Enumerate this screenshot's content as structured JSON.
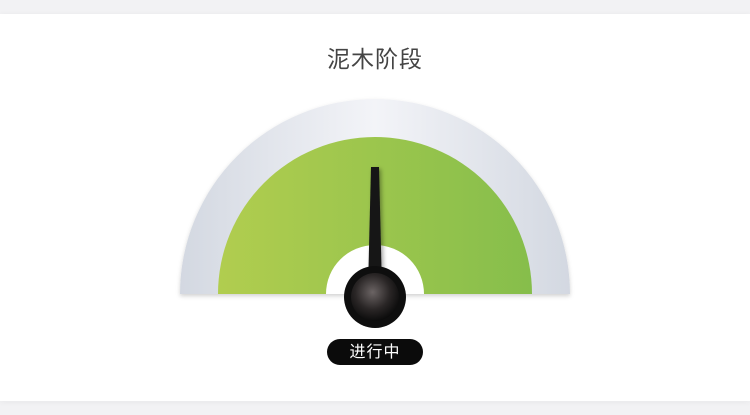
{
  "stage": {
    "title": "泥木阶段",
    "status": "进行中",
    "progress_percent": 50
  },
  "colors": {
    "gauge_green_start": "#b1cd4f",
    "gauge_green_end": "#86be4b",
    "gauge_frame": "#e6e9f0",
    "needle": "#111111",
    "status_bg": "#0b0b0b"
  }
}
